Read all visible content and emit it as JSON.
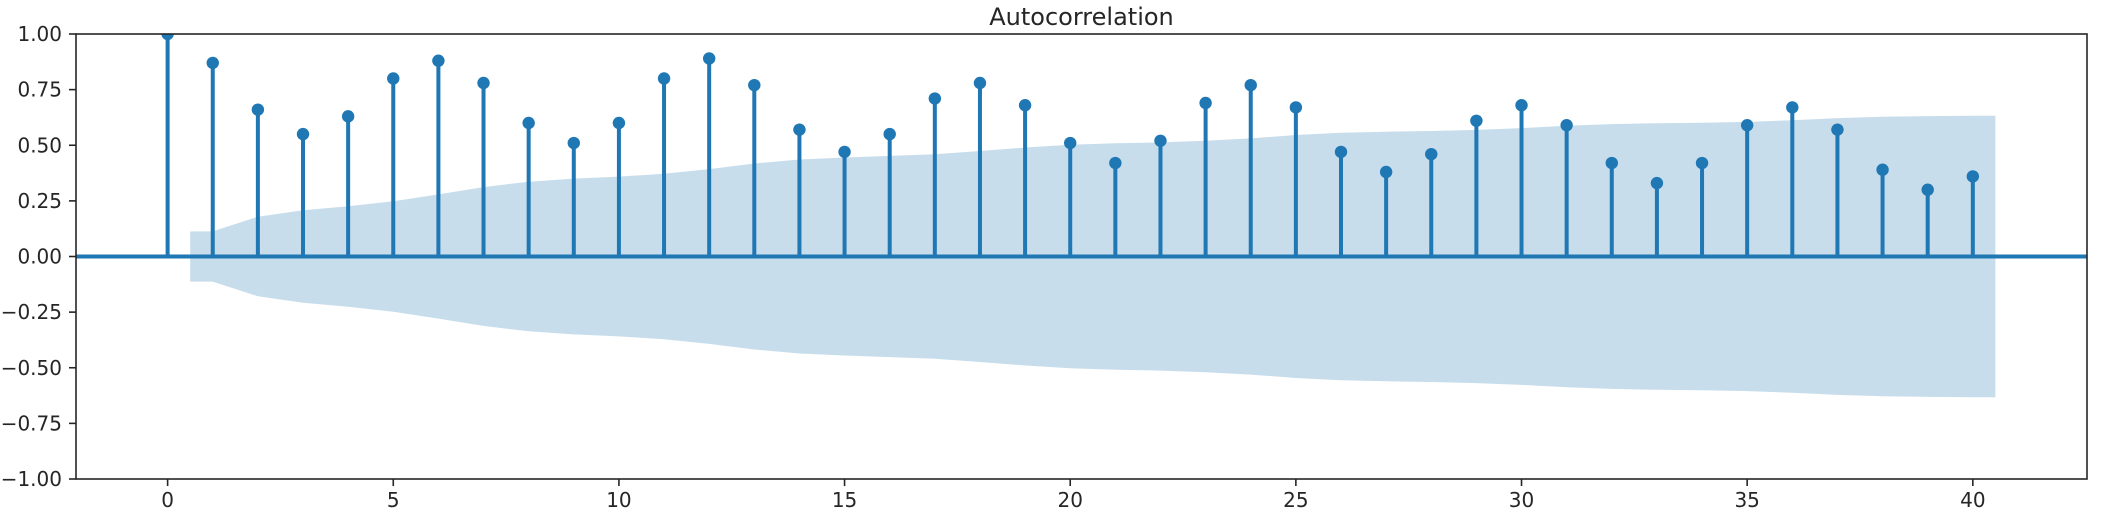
{
  "title": "Autocorrelation",
  "colors": {
    "accent": "#1f77b4",
    "confidence_band_fill": "rgba(31,119,180,0.25)",
    "axis": "#262626",
    "background": "#ffffff"
  },
  "chart_data": {
    "type": "stem",
    "subtype": "autocorrelation",
    "title": "Autocorrelation",
    "xlabel": "",
    "ylabel": "",
    "grid": false,
    "legend": null,
    "xlim": [
      -2.03,
      42.53
    ],
    "ylim": [
      -1.0,
      1.0
    ],
    "lags": [
      0,
      1,
      2,
      3,
      4,
      5,
      6,
      7,
      8,
      9,
      10,
      11,
      12,
      13,
      14,
      15,
      16,
      17,
      18,
      19,
      20,
      21,
      22,
      23,
      24,
      25,
      26,
      27,
      28,
      29,
      30,
      31,
      32,
      33,
      34,
      35,
      36,
      37,
      38,
      39,
      40
    ],
    "acf_values": [
      1.0,
      0.87,
      0.66,
      0.55,
      0.63,
      0.8,
      0.88,
      0.78,
      0.6,
      0.51,
      0.6,
      0.8,
      0.89,
      0.77,
      0.57,
      0.47,
      0.55,
      0.71,
      0.78,
      0.68,
      0.51,
      0.42,
      0.52,
      0.69,
      0.77,
      0.67,
      0.47,
      0.38,
      0.46,
      0.61,
      0.68,
      0.59,
      0.42,
      0.33,
      0.42,
      0.59,
      0.67,
      0.57,
      0.39,
      0.3,
      0.36
    ],
    "conf_band_lags": [
      1,
      2,
      3,
      4,
      5,
      6,
      7,
      8,
      9,
      10,
      11,
      12,
      13,
      14,
      15,
      16,
      17,
      18,
      19,
      20,
      21,
      22,
      23,
      24,
      25,
      26,
      27,
      28,
      29,
      30,
      31,
      32,
      33,
      34,
      35,
      36,
      37,
      38,
      39,
      40
    ],
    "conf_band_halfwidths": [
      0.113,
      0.179,
      0.208,
      0.226,
      0.248,
      0.279,
      0.312,
      0.336,
      0.35,
      0.359,
      0.372,
      0.393,
      0.418,
      0.436,
      0.445,
      0.452,
      0.46,
      0.474,
      0.49,
      0.502,
      0.509,
      0.513,
      0.52,
      0.531,
      0.546,
      0.556,
      0.561,
      0.564,
      0.569,
      0.577,
      0.588,
      0.595,
      0.599,
      0.601,
      0.605,
      0.612,
      0.622,
      0.628,
      0.631,
      0.633
    ],
    "conf_band_x_range": [
      0.5,
      40.5
    ],
    "xticks": [
      0,
      5,
      10,
      15,
      20,
      25,
      30,
      35,
      40
    ],
    "xtick_labels": [
      "0",
      "5",
      "10",
      "15",
      "20",
      "25",
      "30",
      "35",
      "40"
    ],
    "yticks": [
      1.0,
      0.75,
      0.5,
      0.25,
      0.0,
      -0.25,
      -0.5,
      -0.75,
      -1.0
    ],
    "ytick_labels": [
      "1.00",
      "0.75",
      "0.50",
      "0.25",
      "0.00",
      "−0.25",
      "−0.50",
      "−0.75",
      "−1.00"
    ]
  }
}
